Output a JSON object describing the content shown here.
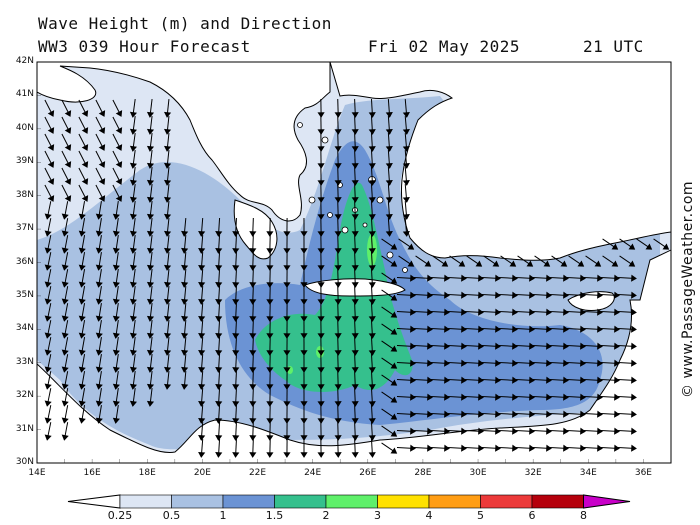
{
  "title": {
    "line1": "Wave Height (m) and Direction",
    "model": "WW3 039 Hour Forecast",
    "date": "Fri 02 May 2025",
    "time": "21 UTC"
  },
  "credit": "© www.PassageWeather.com",
  "axes": {
    "lat_labels": [
      "42N",
      "41N",
      "40N",
      "39N",
      "38N",
      "37N",
      "36N",
      "35N",
      "34N",
      "33N",
      "32N",
      "31N",
      "30N"
    ],
    "lon_labels": [
      "14E",
      "16E",
      "18E",
      "20E",
      "22E",
      "24E",
      "26E",
      "28E",
      "30E",
      "32E",
      "34E",
      "36E"
    ]
  },
  "colorbar": {
    "labels": [
      "0.25",
      "0.5",
      "1",
      "1.5",
      "2",
      "3",
      "4",
      "5",
      "6",
      "8"
    ],
    "colors": [
      "#ffffff",
      "#dde6f4",
      "#a9c1e2",
      "#6b93d4",
      "#35c08d",
      "#5ff06a",
      "#ffe100",
      "#ff9d14",
      "#ec3a3a",
      "#b5000c",
      "#c800c8"
    ]
  },
  "map": {
    "region": "Eastern Mediterranean",
    "lat_range": [
      30,
      42
    ],
    "lon_range": [
      14,
      37
    ],
    "land_color": "#ffffff",
    "arrow_direction_general": "south",
    "arrow_direction_east": "east"
  }
}
